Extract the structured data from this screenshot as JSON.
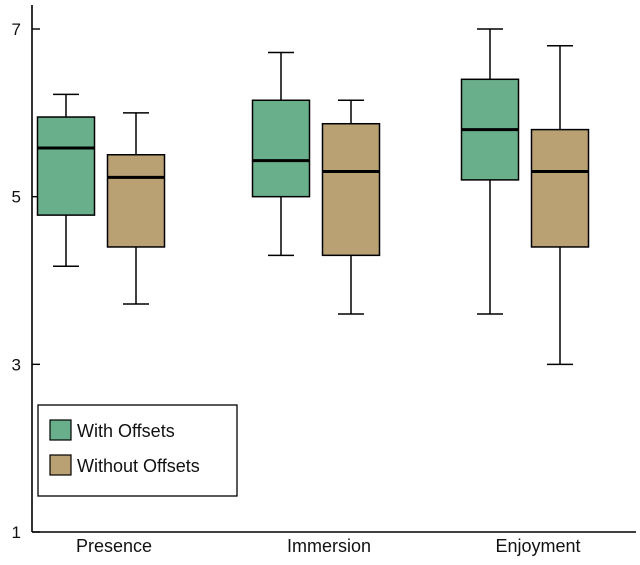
{
  "chart_data": {
    "type": "boxplot",
    "ylim": [
      1,
      7
    ],
    "yticks": [
      1,
      3,
      5,
      7
    ],
    "grid": false,
    "legend_position": "bottom-left",
    "categories": [
      "Presence",
      "Immersion",
      "Enjoyment"
    ],
    "series": [
      {
        "name": "With Offsets",
        "color": "#6aaf8c",
        "boxes": [
          {
            "min": 4.17,
            "q1": 4.78,
            "median": 5.58,
            "q3": 5.95,
            "max": 6.22
          },
          {
            "min": 4.3,
            "q1": 5.0,
            "median": 5.43,
            "q3": 6.15,
            "max": 6.72
          },
          {
            "min": 3.6,
            "q1": 5.2,
            "median": 5.8,
            "q3": 6.4,
            "max": 7.0
          }
        ]
      },
      {
        "name": "Without Offsets",
        "color": "#b9a173",
        "boxes": [
          {
            "min": 3.72,
            "q1": 4.4,
            "median": 5.23,
            "q3": 5.5,
            "max": 6.0
          },
          {
            "min": 3.6,
            "q1": 4.3,
            "median": 5.3,
            "q3": 5.87,
            "max": 6.15
          },
          {
            "min": 3.0,
            "q1": 4.4,
            "median": 5.3,
            "q3": 5.8,
            "max": 6.8
          }
        ]
      }
    ]
  }
}
